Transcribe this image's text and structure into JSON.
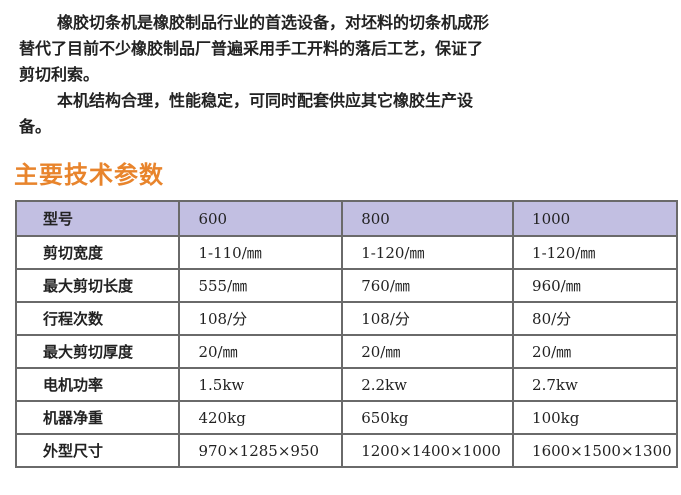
{
  "intro": {
    "paragraphs": [
      "橡胶切条机是橡胶制品行业的首选设备，对坯料的切条机成形替代了目前不少橡胶制品厂普遍采用手工开料的落后工艺，保证了剪切利索。",
      "本机结构合理，性能稳定，可同时配套供应其它橡胶生产设备。"
    ]
  },
  "section_title": "主要技术参数",
  "table": {
    "header": [
      "型号",
      "600",
      "800",
      "1000"
    ],
    "rows": [
      [
        "剪切宽度",
        "1-110/㎜",
        "1-120/㎜",
        "1-120/㎜"
      ],
      [
        "最大剪切长度",
        "555/㎜",
        "760/㎜",
        "960/㎜"
      ],
      [
        "行程次数",
        "108/分",
        "108/分",
        "80/分"
      ],
      [
        "最大剪切厚度",
        "20/㎜",
        "20/㎜",
        "20/㎜"
      ],
      [
        "电机功率",
        "1.5kw",
        "2.2kw",
        "2.7kw"
      ],
      [
        "机器净重",
        "420kg",
        "650kg",
        "100kg"
      ],
      [
        "外型尺寸",
        "970×1285×950",
        "1200×1400×1000",
        "1600×1500×1300"
      ]
    ]
  },
  "colors": {
    "title": "#e8842c",
    "header_bg": "#c2bfe2"
  }
}
